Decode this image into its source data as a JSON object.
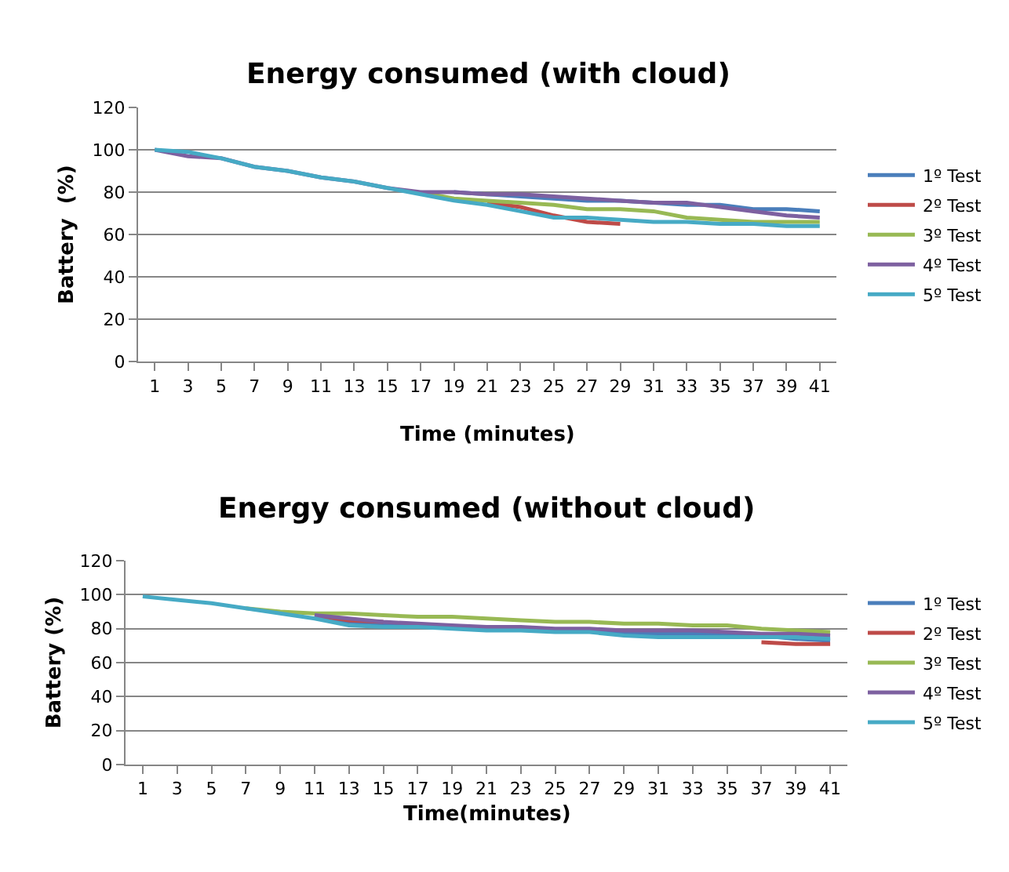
{
  "chart_data": [
    {
      "type": "line",
      "title": "Energy consumed (with cloud)",
      "xlabel": "Time (minutes)",
      "ylabel": "Battery  (%)",
      "x": [
        1,
        3,
        5,
        7,
        9,
        11,
        13,
        15,
        17,
        19,
        21,
        23,
        25,
        27,
        29,
        31,
        33,
        35,
        37,
        39,
        41
      ],
      "xlim": [
        0,
        42
      ],
      "xticks": [
        1,
        3,
        5,
        7,
        9,
        11,
        13,
        15,
        17,
        19,
        21,
        23,
        25,
        27,
        29,
        31,
        33,
        35,
        37,
        39,
        41
      ],
      "ylim": [
        0,
        120
      ],
      "yticks": [
        0,
        20,
        40,
        60,
        80,
        100,
        120
      ],
      "grid": "y",
      "legend": "right",
      "line_style": "solid",
      "marker": "none",
      "series": [
        {
          "name": "1º Test",
          "color": "#4a7ebb",
          "values": [
            null,
            null,
            null,
            null,
            null,
            null,
            null,
            null,
            null,
            80,
            79,
            78,
            77,
            76,
            76,
            75,
            74,
            74,
            72,
            72,
            71
          ]
        },
        {
          "name": "2º Test",
          "color": "#be4b48",
          "values": [
            null,
            null,
            null,
            null,
            null,
            null,
            null,
            null,
            null,
            null,
            75,
            73,
            69,
            66,
            65,
            null,
            null,
            null,
            null,
            null,
            null
          ]
        },
        {
          "name": "3º Test",
          "color": "#98b954",
          "values": [
            null,
            null,
            null,
            null,
            null,
            null,
            null,
            null,
            80,
            77,
            76,
            75,
            74,
            72,
            72,
            71,
            68,
            67,
            66,
            66,
            66
          ]
        },
        {
          "name": "4º Test",
          "color": "#7d60a0",
          "values": [
            100,
            97,
            96,
            92,
            90,
            87,
            85,
            82,
            80,
            80,
            79,
            79,
            78,
            77,
            76,
            75,
            75,
            73,
            71,
            69,
            68
          ]
        },
        {
          "name": "5º Test",
          "color": "#46aac5",
          "values": [
            100,
            99,
            96,
            92,
            90,
            87,
            85,
            82,
            79,
            76,
            74,
            71,
            68,
            68,
            67,
            66,
            66,
            65,
            65,
            64,
            64
          ]
        }
      ]
    },
    {
      "type": "line",
      "title": "Energy consumed (without cloud)",
      "xlabel": "Time(minutes)",
      "ylabel": "Battery (%)",
      "x": [
        1,
        3,
        5,
        7,
        9,
        11,
        13,
        15,
        17,
        19,
        21,
        23,
        25,
        27,
        29,
        31,
        33,
        35,
        37,
        39,
        41
      ],
      "xlim": [
        0,
        42
      ],
      "xticks": [
        1,
        3,
        5,
        7,
        9,
        11,
        13,
        15,
        17,
        19,
        21,
        23,
        25,
        27,
        29,
        31,
        33,
        35,
        37,
        39,
        41
      ],
      "ylim": [
        0,
        120
      ],
      "yticks": [
        0,
        20,
        40,
        60,
        80,
        100,
        120
      ],
      "grid": "y",
      "legend": "right",
      "line_style": "solid",
      "marker": "none",
      "series": [
        {
          "name": "1º Test",
          "color": "#4a7ebb",
          "values": [
            null,
            null,
            null,
            null,
            null,
            87,
            84,
            83,
            82,
            81,
            80,
            80,
            79,
            79,
            77,
            77,
            77,
            77,
            76,
            74,
            73
          ]
        },
        {
          "name": "2º Test",
          "color": "#be4b48",
          "values": [
            null,
            null,
            null,
            null,
            null,
            88,
            85,
            84,
            null,
            null,
            null,
            null,
            null,
            null,
            null,
            null,
            null,
            null,
            72,
            71,
            71
          ]
        },
        {
          "name": "3º Test",
          "color": "#98b954",
          "values": [
            null,
            null,
            null,
            92,
            90,
            89,
            89,
            88,
            87,
            87,
            86,
            85,
            84,
            84,
            83,
            83,
            82,
            82,
            80,
            79,
            78
          ]
        },
        {
          "name": "4º Test",
          "color": "#7d60a0",
          "values": [
            null,
            null,
            null,
            null,
            null,
            88,
            86,
            84,
            83,
            82,
            81,
            81,
            80,
            80,
            79,
            79,
            79,
            78,
            77,
            77,
            76
          ]
        },
        {
          "name": "5º Test",
          "color": "#46aac5",
          "values": [
            99,
            97,
            95,
            92,
            89,
            86,
            82,
            81,
            81,
            80,
            79,
            79,
            78,
            78,
            76,
            75,
            75,
            75,
            75,
            75,
            74
          ]
        }
      ]
    }
  ]
}
